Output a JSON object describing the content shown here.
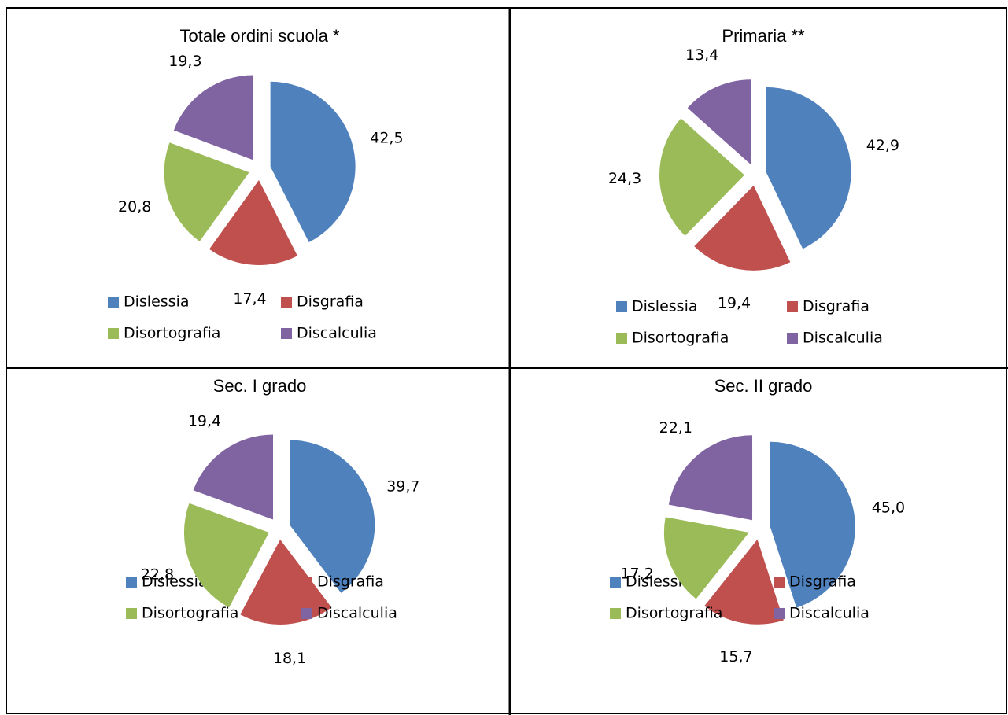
{
  "chart_data": [
    {
      "type": "pie",
      "title": "Totale ordini scuola *",
      "categories": [
        "Dislessia",
        "Disgrafia",
        "Disortografia",
        "Discalculia"
      ],
      "values": [
        42.5,
        17.4,
        20.8,
        19.3
      ],
      "value_labels": [
        "42,5",
        "17,4",
        "20,8",
        "19,3"
      ],
      "colors": [
        "#4f81bd",
        "#c0504d",
        "#9bbb59",
        "#8064a2"
      ]
    },
    {
      "type": "pie",
      "title": "Primaria **",
      "categories": [
        "Dislessia",
        "Disgrafia",
        "Disortografia",
        "Discalculia"
      ],
      "values": [
        42.9,
        19.4,
        24.3,
        13.4
      ],
      "value_labels": [
        "42,9",
        "19,4",
        "24,3",
        "13,4"
      ],
      "colors": [
        "#4f81bd",
        "#c0504d",
        "#9bbb59",
        "#8064a2"
      ]
    },
    {
      "type": "pie",
      "title": "Sec. I grado",
      "categories": [
        "Dislessia",
        "Disgrafia",
        "Disortografia",
        "Discalculia"
      ],
      "values": [
        39.7,
        18.1,
        22.8,
        19.4
      ],
      "value_labels": [
        "39,7",
        "18,1",
        "22,8",
        "19,4"
      ],
      "colors": [
        "#4f81bd",
        "#c0504d",
        "#9bbb59",
        "#8064a2"
      ]
    },
    {
      "type": "pie",
      "title": "Sec. II grado",
      "categories": [
        "Dislessia",
        "Disgrafia",
        "Disortografia",
        "Discalculia"
      ],
      "values": [
        45.0,
        15.7,
        17.2,
        22.1
      ],
      "value_labels": [
        "45,0",
        "15,7",
        "17,2",
        "22,1"
      ],
      "colors": [
        "#4f81bd",
        "#c0504d",
        "#9bbb59",
        "#8064a2"
      ]
    }
  ]
}
